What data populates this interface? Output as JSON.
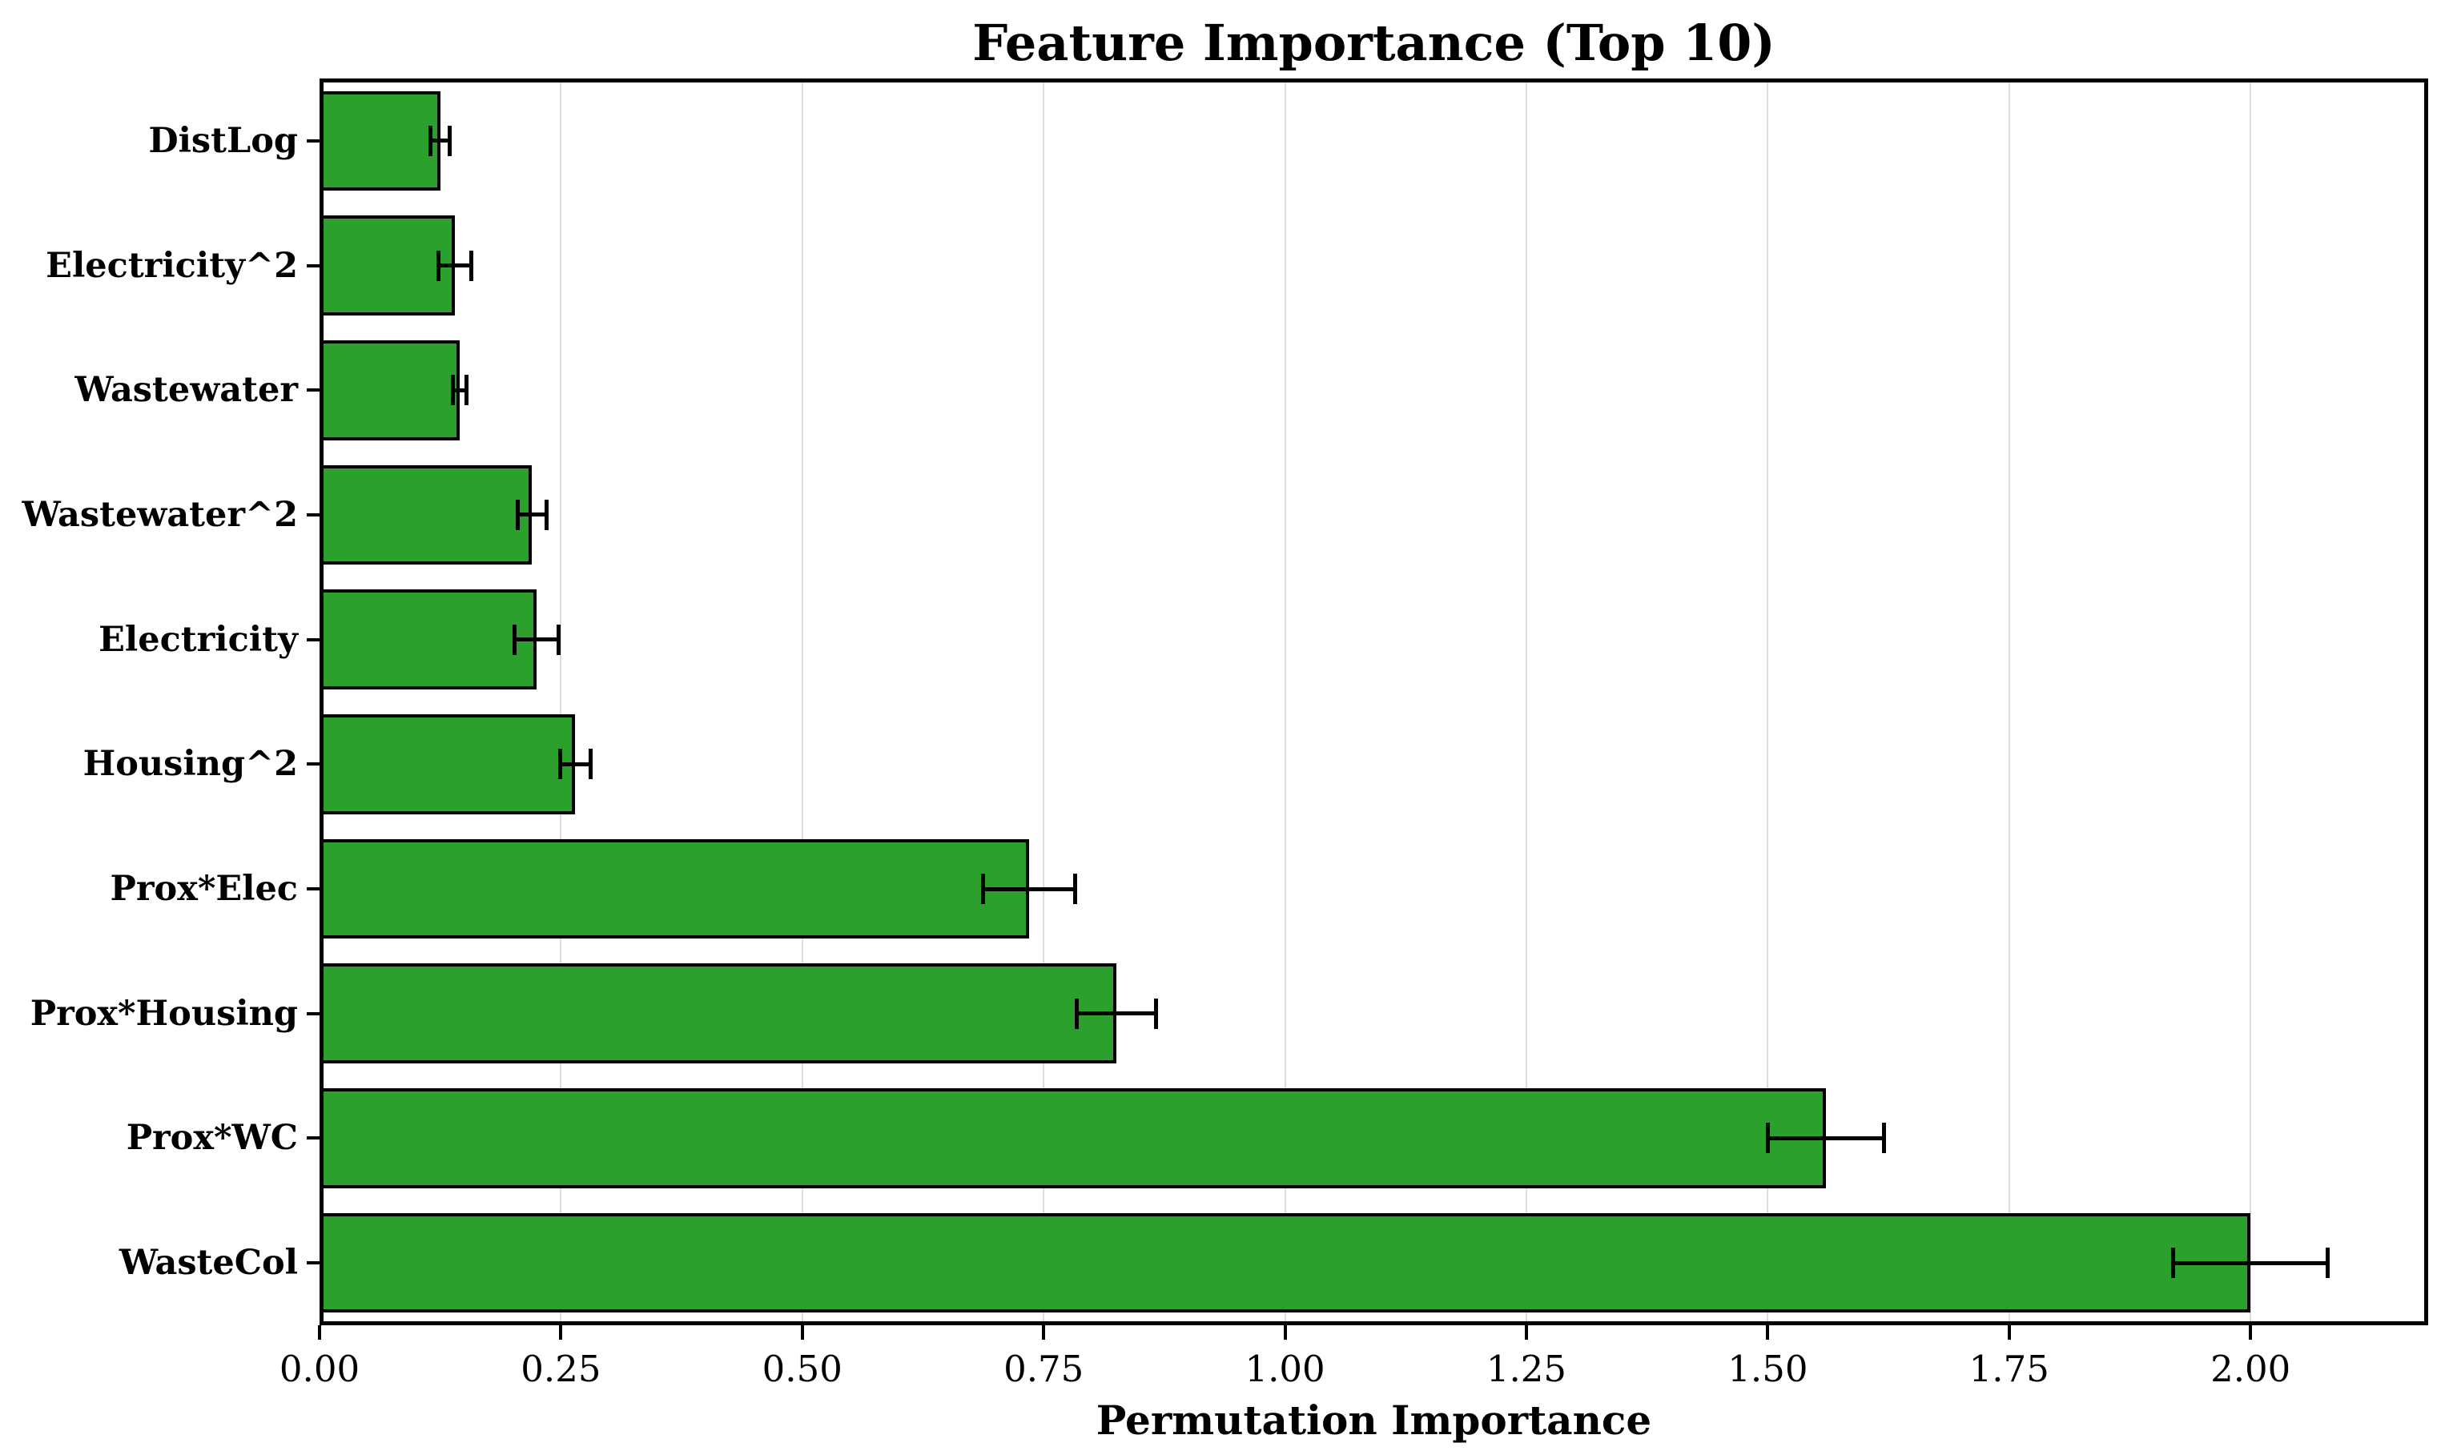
{
  "chart_data": {
    "type": "bar",
    "orientation": "horizontal",
    "title": "Feature Importance (Top 10)",
    "xlabel": "Permutation Importance",
    "ylabel": "",
    "categories": [
      "DistLog",
      "Electricity^2",
      "Wastewater",
      "Wastewater^2",
      "Electricity",
      "Housing^2",
      "Prox*Elec",
      "Prox*Housing",
      "Prox*WC",
      "WasteCol"
    ],
    "categories_order": "top-to-bottom",
    "series": [
      {
        "name": "Permutation Importance",
        "values": [
          0.125,
          0.14,
          0.145,
          0.22,
          0.225,
          0.265,
          0.735,
          0.825,
          1.56,
          2.0
        ]
      }
    ],
    "error_bars": [
      0.01,
      0.017,
      0.007,
      0.015,
      0.023,
      0.016,
      0.048,
      0.041,
      0.06,
      0.08
    ],
    "xlim": [
      0,
      2.184
    ],
    "xticks": [
      0,
      0.25,
      0.5,
      0.75,
      1.0,
      1.25,
      1.5,
      1.75,
      2.0
    ],
    "xtick_labels": [
      "0.00",
      "0.25",
      "0.50",
      "0.75",
      "1.00",
      "1.25",
      "1.50",
      "1.75",
      "2.00"
    ],
    "grid": "vertical-light",
    "legend": "none",
    "colors": {
      "bar_fill": "#2ca02c",
      "bar_edge": "#000000",
      "error": "#000000",
      "grid": "#dcdcdc",
      "background": "#ffffff",
      "text": "#000000"
    }
  }
}
